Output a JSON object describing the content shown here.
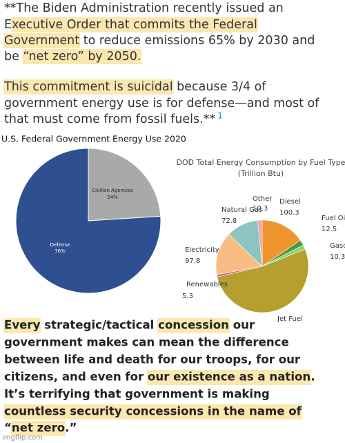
{
  "top_text": {
    "lines": [
      [
        {
          "text": "**The Biden Administration recently issued an",
          "highlight": false
        }
      ],
      [
        {
          "text": "E",
          "highlight": false
        },
        {
          "text": "xecutive Order that commits the Federal",
          "highlight": true
        }
      ],
      [
        {
          "text": "Government",
          "highlight": true
        },
        {
          "text": " to reduce emissions 65% by 2030 and",
          "highlight": false
        }
      ],
      [
        {
          "text": "be ",
          "highlight": false
        },
        {
          "text": "“net zero” by 2050.",
          "highlight": true
        }
      ],
      [
        {
          "text": "This commitment is suicidal",
          "highlight": true
        },
        {
          "text": " because 3/4 of",
          "highlight": false
        }
      ],
      [
        {
          "text": "government energy use is for defense—and most of",
          "highlight": false
        }
      ],
      [
        {
          "text": "that must come from fossil fuels.**",
          "highlight": false
        }
      ]
    ],
    "footnote": "1"
  },
  "chart_data": [
    {
      "type": "pie",
      "title": "U.S. Federal Government Energy Use 2020",
      "categories": [
        "Civilian Agencies",
        "Defense"
      ],
      "values": [
        24,
        76
      ],
      "value_labels": [
        "24%",
        "76%"
      ],
      "colors": [
        "#a9a9a9",
        "#2f5090"
      ]
    },
    {
      "type": "pie",
      "title": "DOD Total Energy Consumption by Fuel Type",
      "subtitle": "(Trillion Btu)",
      "categories": [
        "Diesel",
        "Fuel Oil",
        "Gasoline",
        "Jet Fuel",
        "Renewables",
        "Electricity",
        "Natural Gas",
        "Other"
      ],
      "values": [
        100.3,
        12.5,
        10.3,
        340,
        5.3,
        97.8,
        72.8,
        10.3
      ],
      "colors": [
        "#f0952e",
        "#4f9a3a",
        "#8fd36c",
        "#b59f2e",
        "#d4637e",
        "#f9bd84",
        "#8dc4bf",
        "#f4a1aa"
      ]
    }
  ],
  "bottom_text": {
    "lines": [
      [
        {
          "text": "Every",
          "highlight": true
        },
        {
          "text": " strategic/tactical ",
          "highlight": false
        },
        {
          "text": "concession",
          "highlight": true
        },
        {
          "text": " our",
          "highlight": false
        }
      ],
      [
        {
          "text": "government makes can mean the difference",
          "highlight": false
        }
      ],
      [
        {
          "text": "between life and death for our troops, for our",
          "highlight": false
        }
      ],
      [
        {
          "text": "citizens, and even for ",
          "highlight": false
        },
        {
          "text": "our existence as a nation",
          "highlight": true
        },
        {
          "text": ".",
          "highlight": false
        }
      ],
      [
        {
          "text": "It’s terrifying that government is making",
          "highlight": false
        }
      ],
      [
        {
          "text": "countless security concessions in the name of",
          "highlight": true
        }
      ],
      [
        {
          "text": "“",
          "highlight": false
        },
        {
          "text": "net zero",
          "highlight": true
        },
        {
          "text": ".”",
          "highlight": false
        }
      ]
    ]
  },
  "watermark": "imgflip.com"
}
